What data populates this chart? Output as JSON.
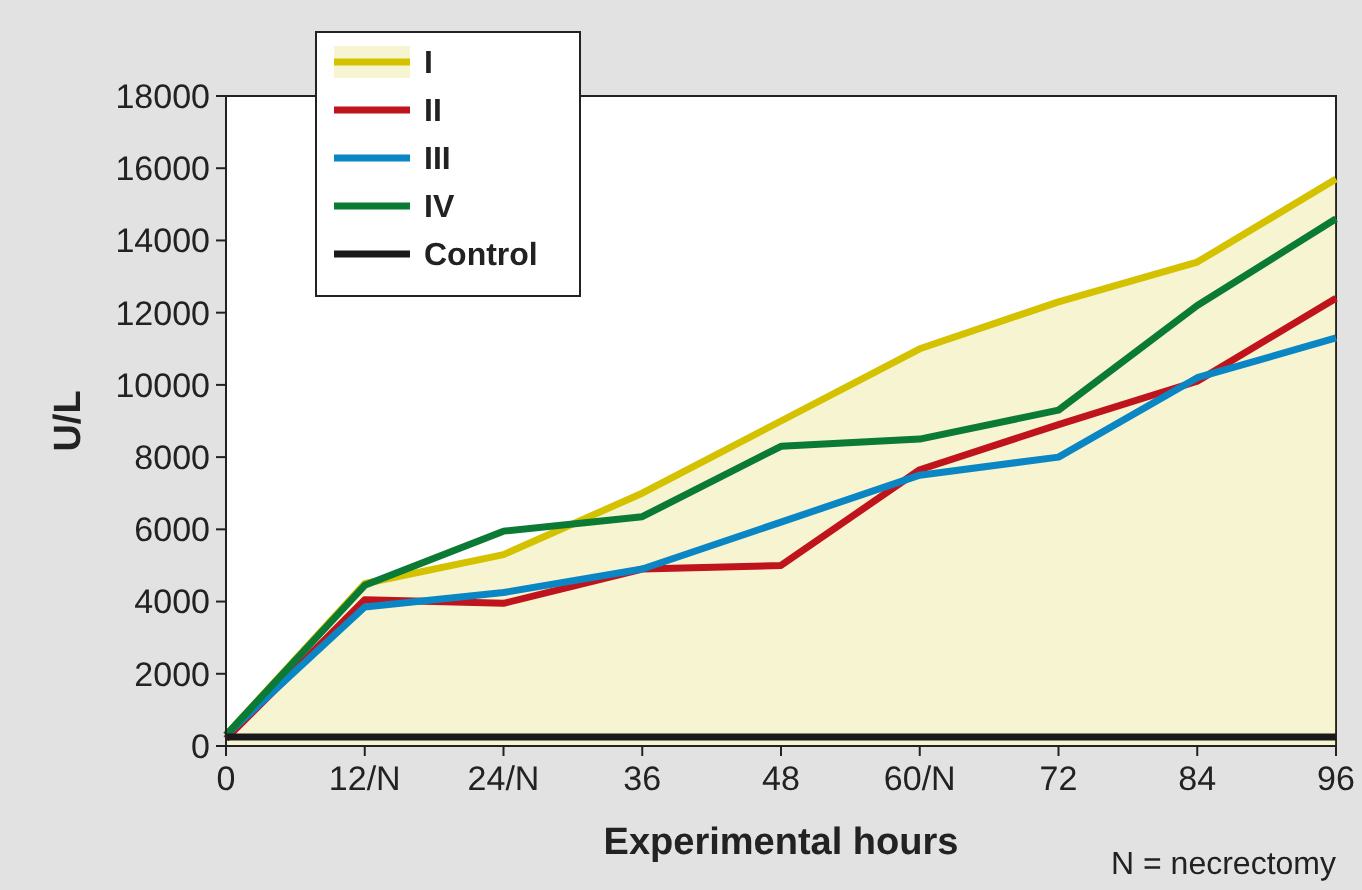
{
  "chart_data": {
    "type": "line",
    "xlabel": "Experimental hours",
    "ylabel": "U/L",
    "annotations": [
      "N = necrectomy"
    ],
    "x": [
      0,
      12,
      24,
      36,
      48,
      60,
      72,
      84,
      96
    ],
    "xlim": [
      0,
      96
    ],
    "xticks": [
      0,
      {
        "value": 12,
        "label": "12/N"
      },
      {
        "value": 24,
        "label": "24/N"
      },
      36,
      48,
      {
        "value": 60,
        "label": "60/N"
      },
      72,
      84,
      96
    ],
    "ylim": [
      0,
      18000
    ],
    "yticks": [
      0,
      2000,
      4000,
      6000,
      8000,
      10000,
      12000,
      14000,
      16000,
      18000
    ],
    "legend": "top left",
    "grid": false,
    "marker": "none",
    "line_style": "solid",
    "series": [
      {
        "name": "I",
        "type": "area",
        "color": "#d4c200",
        "values": [
          300,
          4500,
          5300,
          7000,
          9000,
          11000,
          12300,
          13400,
          15700
        ]
      },
      {
        "name": "II",
        "color": "#c0141c",
        "values": [
          200,
          4050,
          3950,
          4900,
          5000,
          7650,
          8900,
          10100,
          12400
        ]
      },
      {
        "name": "III",
        "color": "#0a86c4",
        "values": [
          300,
          3850,
          4250,
          4900,
          6200,
          7500,
          8000,
          10200,
          11300
        ]
      },
      {
        "name": "IV",
        "color": "#0a7a34",
        "values": [
          300,
          4450,
          5950,
          6350,
          8300,
          8500,
          9300,
          12200,
          14600
        ]
      },
      {
        "name": "Control",
        "color": "#1a1a1a",
        "values": [
          250,
          250,
          250,
          250,
          250,
          250,
          250,
          250,
          250
        ]
      }
    ]
  }
}
